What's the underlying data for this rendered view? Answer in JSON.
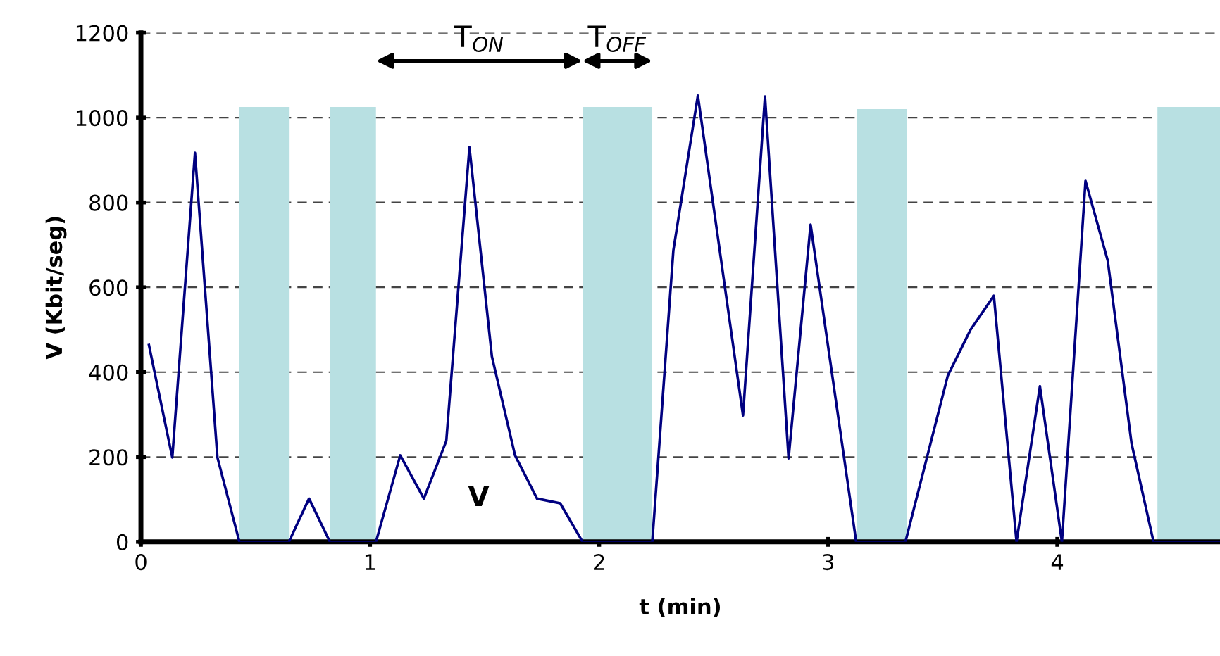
{
  "chart_data": {
    "type": "line",
    "xlabel": "t (min)",
    "ylabel": "V (Kbit/seg)",
    "xlim": [
      0,
      4.71
    ],
    "xticks": [
      0,
      1,
      2,
      3,
      4
    ],
    "ylim": [
      0,
      1200
    ],
    "yticks": [
      0,
      200,
      400,
      600,
      800,
      1000,
      1200
    ],
    "grid": "y",
    "line_style": "solid",
    "marker": "none",
    "series": [
      {
        "type": "area",
        "color": "#b8e0e2",
        "x": [
          0.43,
          0.646
        ],
        "values": [
          1025,
          1025
        ]
      },
      {
        "type": "area",
        "color": "#b8e0e2",
        "x": [
          0.825,
          1.026
        ],
        "values": [
          1025,
          1025
        ]
      },
      {
        "type": "area",
        "color": "#b8e0e2",
        "x": [
          1.928,
          2.232
        ],
        "values": [
          1025,
          1025
        ]
      },
      {
        "type": "area",
        "color": "#b8e0e2",
        "x": [
          3.126,
          3.342
        ],
        "values": [
          1020,
          1020
        ]
      },
      {
        "type": "area",
        "color": "#b8e0e2",
        "x": [
          4.437,
          4.71
        ],
        "values": [
          1025,
          1025
        ]
      },
      {
        "color": "#000080",
        "x": [
          0.035,
          0.137,
          0.236,
          0.334,
          0.43,
          0.646,
          0.734,
          0.825,
          1.026,
          1.132,
          1.235,
          1.333,
          1.434,
          1.532,
          1.633,
          1.729,
          1.83,
          1.928,
          2.232,
          2.324,
          2.431,
          2.628,
          2.724,
          2.827,
          2.923,
          3.122,
          3.337,
          3.522,
          3.62,
          3.723,
          3.822,
          3.924,
          4.02,
          4.123,
          4.22,
          4.324,
          4.42,
          4.71
        ],
        "values": [
          464,
          199,
          917,
          199,
          0,
          0,
          102,
          0,
          0,
          204,
          102,
          238,
          930,
          437,
          204,
          102,
          91,
          0,
          0,
          687,
          1052,
          298,
          1050,
          197,
          748,
          0,
          0,
          392,
          499,
          580,
          0,
          367,
          0,
          851,
          663,
          232,
          0,
          0
        ]
      }
    ],
    "annotations": [
      "T$_{ON}$",
      "T$_{OFF}$",
      "V"
    ]
  }
}
